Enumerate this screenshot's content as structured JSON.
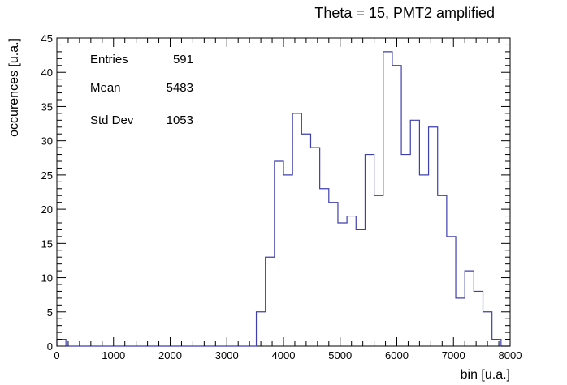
{
  "chart_data": {
    "type": "histogram",
    "title": "Theta = 15, PMT2 amplified",
    "xlabel": "bin [u.a.]",
    "ylabel": "occurences [u.a.]",
    "xlim": [
      0,
      8000
    ],
    "ylim": [
      0,
      45
    ],
    "x_ticks": [
      0,
      1000,
      2000,
      3000,
      4000,
      5000,
      6000,
      7000,
      8000
    ],
    "y_ticks": [
      0,
      5,
      10,
      15,
      20,
      25,
      30,
      35,
      40,
      45
    ],
    "grid": false,
    "line_color": "#3f3faf",
    "bin_width": 160,
    "bins": [
      {
        "x0": 0,
        "x1": 160,
        "value": 1
      },
      {
        "x0": 160,
        "x1": 3520,
        "value": 0
      },
      {
        "x0": 3520,
        "x1": 3680,
        "value": 5
      },
      {
        "x0": 3680,
        "x1": 3840,
        "value": 13
      },
      {
        "x0": 3840,
        "x1": 4000,
        "value": 27
      },
      {
        "x0": 4000,
        "x1": 4160,
        "value": 25
      },
      {
        "x0": 4160,
        "x1": 4320,
        "value": 34
      },
      {
        "x0": 4320,
        "x1": 4480,
        "value": 31
      },
      {
        "x0": 4480,
        "x1": 4640,
        "value": 29
      },
      {
        "x0": 4640,
        "x1": 4800,
        "value": 23
      },
      {
        "x0": 4800,
        "x1": 4960,
        "value": 21
      },
      {
        "x0": 4960,
        "x1": 5120,
        "value": 18
      },
      {
        "x0": 5120,
        "x1": 5280,
        "value": 19
      },
      {
        "x0": 5280,
        "x1": 5440,
        "value": 17
      },
      {
        "x0": 5440,
        "x1": 5600,
        "value": 28
      },
      {
        "x0": 5600,
        "x1": 5760,
        "value": 22
      },
      {
        "x0": 5760,
        "x1": 5920,
        "value": 43
      },
      {
        "x0": 5920,
        "x1": 6080,
        "value": 41
      },
      {
        "x0": 6080,
        "x1": 6240,
        "value": 28
      },
      {
        "x0": 6240,
        "x1": 6400,
        "value": 33
      },
      {
        "x0": 6400,
        "x1": 6560,
        "value": 25
      },
      {
        "x0": 6560,
        "x1": 6720,
        "value": 32
      },
      {
        "x0": 6720,
        "x1": 6880,
        "value": 22
      },
      {
        "x0": 6880,
        "x1": 7040,
        "value": 16
      },
      {
        "x0": 7040,
        "x1": 7200,
        "value": 7
      },
      {
        "x0": 7200,
        "x1": 7360,
        "value": 11
      },
      {
        "x0": 7360,
        "x1": 7520,
        "value": 8
      },
      {
        "x0": 7520,
        "x1": 7680,
        "value": 5
      },
      {
        "x0": 7680,
        "x1": 7840,
        "value": 1
      },
      {
        "x0": 7840,
        "x1": 8000,
        "value": 0
      }
    ],
    "stats": [
      {
        "label": "Entries",
        "value": "591"
      },
      {
        "label": "Mean",
        "value": "5483"
      },
      {
        "label": "Std Dev",
        "value": "1053"
      }
    ]
  }
}
